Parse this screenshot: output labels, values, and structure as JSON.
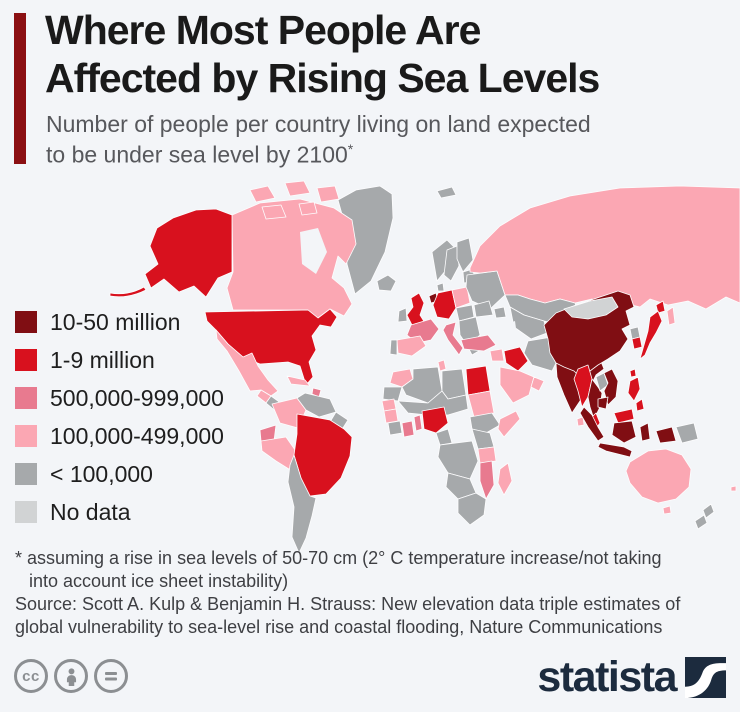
{
  "header": {
    "title_line1": "Where Most People Are",
    "title_line2": "Affected by Rising Sea Levels",
    "subtitle_line1": "Number of people per country living on land expected",
    "subtitle_line2": "to be under sea level by 2100",
    "asterisk": "*",
    "accent_color": "#8b1013"
  },
  "chart_data": {
    "type": "choropleth_map",
    "title": "Where Most People Are Affected by Rising Sea Levels",
    "subtitle": "Number of people per country living on land expected to be under sea level by 2100*",
    "legend_position": "left",
    "legend": [
      {
        "label": "10-50 million",
        "color": "#800e13"
      },
      {
        "label": "1-9 million",
        "color": "#d8111e"
      },
      {
        "label": "500,000-999,000",
        "color": "#e87a8f"
      },
      {
        "label": "100,000-499,000",
        "color": "#fba7b3"
      },
      {
        "label": "< 100,000",
        "color": "#a6a9ab"
      },
      {
        "label": "No data",
        "color": "#d1d3d4"
      }
    ],
    "areas": {
      "China": "10-50 million",
      "India": "10-50 million",
      "Netherlands": "10-50 million",
      "Thailand": "10-50 million",
      "Vietnam": "10-50 million",
      "Cambodia": "10-50 million",
      "Indonesia": "10-50 million",
      "United States": "1-9 million",
      "Brazil": "1-9 million",
      "United Kingdom": "1-9 million",
      "Germany": "1-9 million",
      "Egypt": "1-9 million",
      "Iraq": "1-9 million",
      "Nigeria": "1-9 million",
      "Japan": "1-9 million",
      "South Korea": "1-9 million",
      "Taiwan": "1-9 million",
      "Myanmar": "1-9 million",
      "Malaysia": "1-9 million",
      "Philippines": "1-9 million",
      "France": "500,000-999,000",
      "Italy": "500,000-999,000",
      "Turkey": "500,000-999,000",
      "Pakistan": "500,000-999,000",
      "Ecuador": "500,000-999,000",
      "Ghana": "500,000-999,000",
      "Benin": "500,000-999,000",
      "Mozambique": "500,000-999,000",
      "Dominican Republic": "500,000-999,000",
      "Canada": "100,000-499,000",
      "Mexico": "100,000-499,000",
      "Guatemala": "100,000-499,000",
      "Cuba": "100,000-499,000",
      "Colombia": "100,000-499,000",
      "Peru": "100,000-499,000",
      "Russia": "100,000-499,000",
      "Poland": "100,000-499,000",
      "Spain": "100,000-499,000",
      "Morocco": "100,000-499,000",
      "Tunisia": "100,000-499,000",
      "Senegal": "100,000-499,000",
      "Guinea": "100,000-499,000",
      "Sudan": "100,000-499,000",
      "Somalia": "100,000-499,000",
      "Tanzania": "100,000-499,000",
      "Madagascar": "100,000-499,000",
      "Saudi Arabia": "100,000-499,000",
      "United Arab Emirates": "100,000-499,000",
      "Syria": "100,000-499,000",
      "Sri Lanka": "100,000-499,000",
      "Australia": "100,000-499,000",
      "Fiji": "100,000-499,000",
      "Greenland": "< 100,000",
      "Central America": "< 100,000",
      "Venezuela": "< 100,000",
      "Guyana": "< 100,000",
      "Argentina": "< 100,000",
      "Iceland": "< 100,000",
      "Svalbard": "< 100,000",
      "Ireland": "< 100,000",
      "Norway": "< 100,000",
      "Sweden": "< 100,000",
      "Finland": "< 100,000",
      "Baltics": "< 100,000",
      "Denmark": "< 100,000",
      "Ukraine": "< 100,000",
      "Central Europe": "< 100,000",
      "Romania": "< 100,000",
      "Balkans": "< 100,000",
      "Greece": "< 100,000",
      "Portugal": "< 100,000",
      "Kazakhstan": "< 100,000",
      "Central Asia": "< 100,000",
      "Caucasus": "< 100,000",
      "Iran": "< 100,000",
      "Afghanistan": "< 100,000",
      "North Korea": "< 100,000",
      "Laos": "< 100,000",
      "Papua New Guinea": "< 100,000",
      "New Zealand": "< 100,000",
      "Mauritania": "< 100,000",
      "Algeria": "< 100,000",
      "Libya": "< 100,000",
      "Mali": "< 100,000",
      "Ivory Coast": "< 100,000",
      "Cameroon": "< 100,000",
      "Ethiopia": "< 100,000",
      "Kenya": "< 100,000",
      "DR Congo": "< 100,000",
      "Angola": "< 100,000",
      "South Africa": "< 100,000",
      "Mongolia": "No data"
    }
  },
  "footnote": {
    "line1": "* assuming a rise in sea levels of 50-70 cm (2° C temperature increase/not taking",
    "line2": "into account ice sheet instability)",
    "source_line1": "Source: Scott A. Kulp & Benjamin H. Strauss: New elevation data triple estimates of",
    "source_line2": "global vulnerability to sea-level rise and coastal flooding, Nature Communications"
  },
  "footer": {
    "cc_label": "cc",
    "brand": "statista",
    "brand_color": "#1c2b3e"
  }
}
